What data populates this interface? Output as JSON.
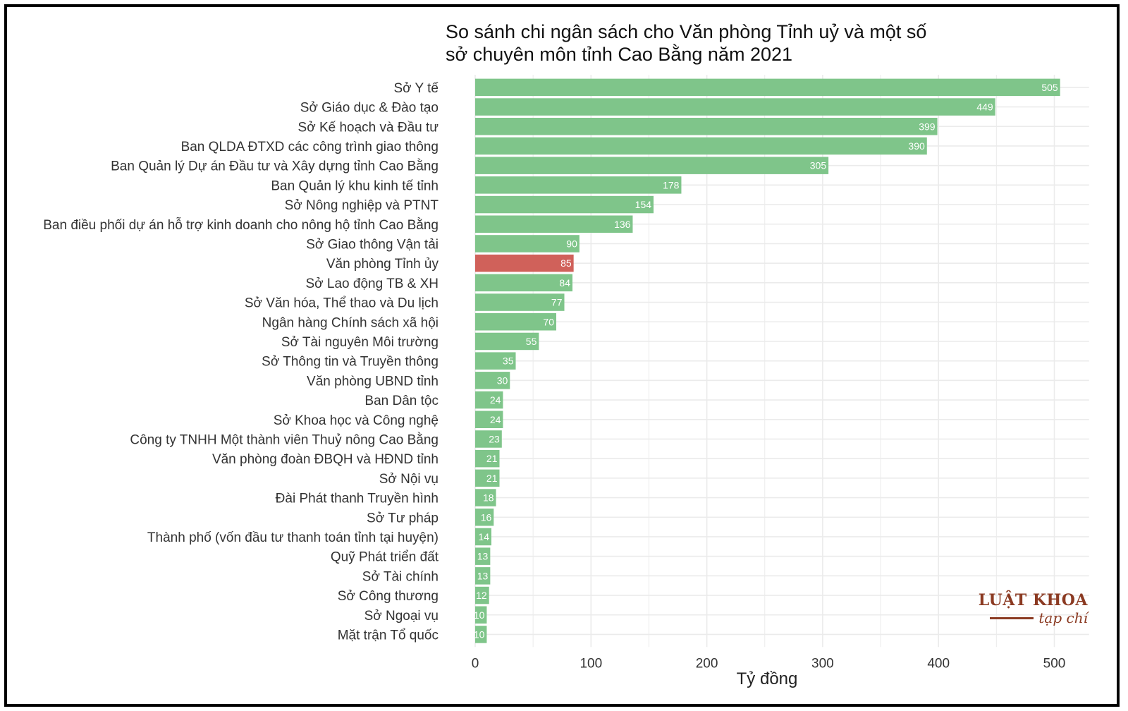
{
  "title_lines": [
    "So sánh chi ngân sách cho Văn phòng Tỉnh uỷ và một số",
    "sở chuyên môn tỉnh Cao Bằng năm 2021"
  ],
  "logo": {
    "main": "LUẬT KHOA",
    "sub": "tạp chí"
  },
  "colors": {
    "bar": "#7fc58a",
    "highlight": "#d0615a",
    "grid": "#ebebeb",
    "label": "#ffffff",
    "text": "#333333",
    "logo": "#8b3a22"
  },
  "chart_data": {
    "type": "bar",
    "orientation": "horizontal",
    "title": "So sánh chi ngân sách cho Văn phòng Tỉnh uỷ và một số sở chuyên môn tỉnh Cao Bằng năm 2021",
    "xlabel": "Tỷ đồng",
    "ylabel": "",
    "xlim": [
      0,
      530
    ],
    "xticks": [
      0,
      100,
      200,
      300,
      400,
      500
    ],
    "grid": true,
    "highlight_category": "Văn phòng Tỉnh ủy",
    "categories": [
      "Sở Y tế",
      "Sở Giáo dục & Đào tạo",
      "Sở Kế hoạch và Đầu tư",
      "Ban QLDA ĐTXD các công trình giao thông",
      "Ban Quản lý Dự án Đầu tư và Xây dựng tỉnh Cao Bằng",
      "Ban Quản lý khu kinh tế tỉnh",
      "Sở Nông nghiệp và PTNT",
      "Ban điều phối dự án hỗ trợ kinh doanh cho nông hộ tỉnh Cao Bằng",
      "Sở Giao thông Vận tải",
      "Văn phòng Tỉnh ủy",
      "Sở Lao động TB & XH",
      "Sở Văn hóa, Thể thao và Du lịch",
      "Ngân hàng Chính sách xã hội",
      "Sở Tài nguyên Môi trường",
      "Sở Thông tin và Truyền thông",
      "Văn phòng UBND tỉnh",
      "Ban Dân tộc",
      "Sở Khoa học và Công nghệ",
      "Công ty TNHH Một thành viên Thuỷ nông Cao Bằng",
      "Văn phòng đoàn ĐBQH và HĐND tỉnh",
      "Sở Nội vụ",
      "Đài Phát thanh Truyền hình",
      "Sở Tư pháp",
      "Thành phố (vốn đầu tư thanh toán tỉnh tại huyện)",
      "Quỹ Phát triển đất",
      "Sở Tài chính",
      "Sở Công thương",
      "Sở Ngoại vụ",
      "Mặt trận Tổ quốc"
    ],
    "values": [
      505,
      449,
      399,
      390,
      305,
      178,
      154,
      136,
      90,
      85,
      84,
      77,
      70,
      55,
      35,
      30,
      24,
      24,
      23,
      21,
      21,
      18,
      16,
      14,
      13,
      13,
      12,
      10,
      10
    ]
  }
}
